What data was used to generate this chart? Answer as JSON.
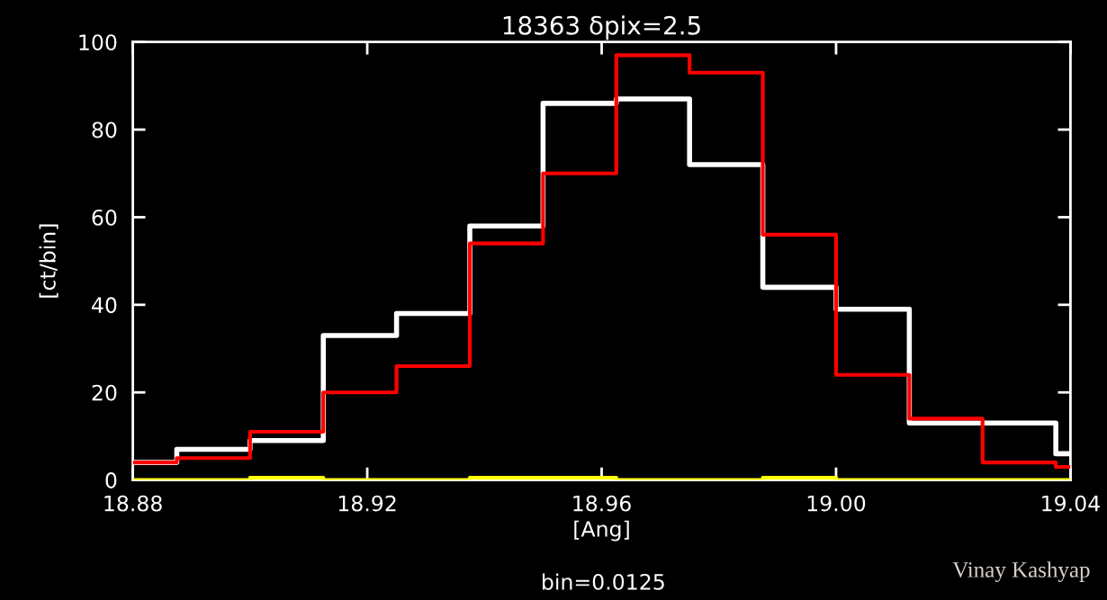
{
  "chart_data": {
    "type": "histogram",
    "title": "18363 δpix=2.5",
    "xlabel": "[Ang]",
    "ylabel": "[ct/bin]",
    "annotations": [
      "bin=0.0125",
      "Vinay Kashyap"
    ],
    "bins": [
      18.88,
      18.8875,
      18.9,
      18.9125,
      18.925,
      18.9375,
      18.95,
      18.9625,
      18.975,
      18.9875,
      19.0,
      19.0125,
      19.025,
      19.0375,
      19.04
    ],
    "series": [
      {
        "color": "#ffffff",
        "values": [
          4,
          7,
          9,
          33,
          38,
          58,
          86,
          87,
          72,
          44,
          39,
          13,
          13,
          6
        ]
      },
      {
        "color": "#ff0000",
        "values": [
          4,
          5,
          11,
          20,
          26,
          54,
          70,
          97,
          93,
          56,
          24,
          14,
          4,
          3
        ]
      },
      {
        "color": "#ffff00",
        "values": [
          0,
          0,
          0.5,
          0,
          0,
          0.5,
          0.5,
          0,
          0,
          0.5,
          0,
          0,
          0,
          0
        ]
      }
    ],
    "xlim": [
      18.88,
      19.04
    ],
    "ylim": [
      0,
      100
    ],
    "xticks": [
      18.88,
      18.92,
      18.96,
      {
        "value": 19.0,
        "label": "19.00"
      },
      19.04
    ],
    "yticks": [
      0,
      20,
      40,
      60,
      80,
      100
    ],
    "grid": false,
    "legend": false
  }
}
